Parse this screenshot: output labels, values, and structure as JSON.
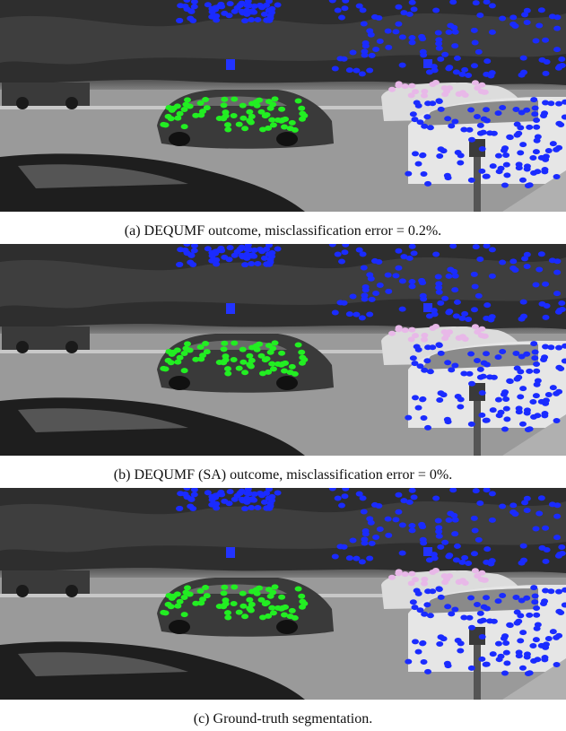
{
  "figure": {
    "panels": [
      {
        "caption": "(a) DEQUMF outcome, misclassification error = 0.2%."
      },
      {
        "caption": "(b) DEQUMF (SA) outcome, misclassification error = 0%."
      },
      {
        "caption": "(c) Ground-truth segmentation."
      }
    ]
  }
}
